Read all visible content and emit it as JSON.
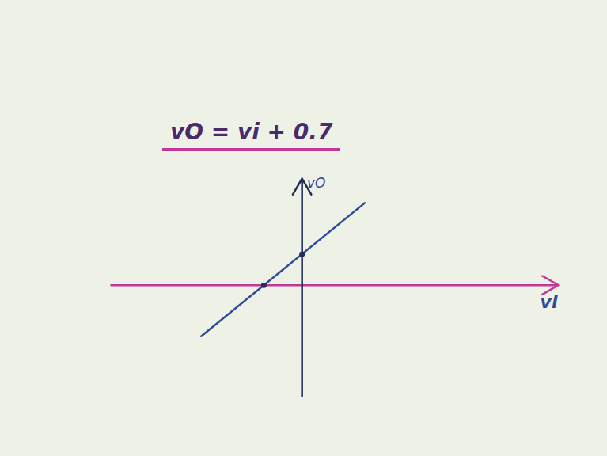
{
  "chart_data": {
    "type": "line",
    "title": "vO = vi + 0.7",
    "x_label": "vi",
    "y_label": "vO",
    "x": [
      -1.85,
      1.15
    ],
    "values": [
      -1.15,
      1.85
    ],
    "color": "#2d4a9c",
    "marker": "dot",
    "points": [
      {
        "x": -0.7,
        "y": 0
      },
      {
        "x": 0,
        "y": 0.7
      }
    ],
    "xlim": [
      -3.5,
      4.7
    ],
    "ylim": [
      -2.5,
      2.4
    ],
    "tick_labels": false,
    "grid": false
  }
}
